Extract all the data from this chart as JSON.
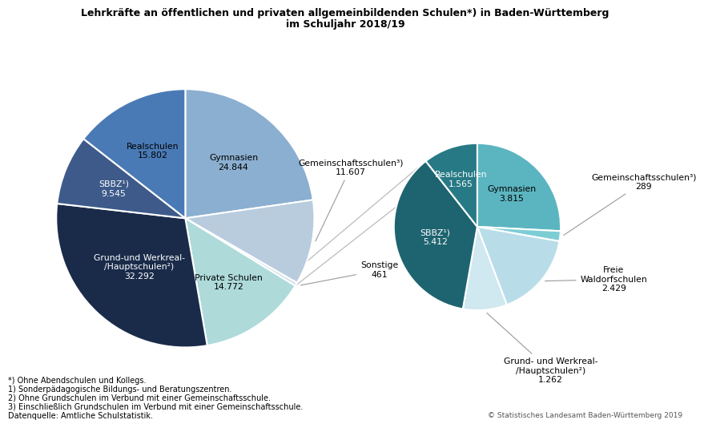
{
  "title_line1": "Lehrkräfte an öffentlichen und privaten allgemeinbildenden Schulen*) in Baden-Württemberg",
  "title_line2": "im Schuljahr 2018/19",
  "big_pie": {
    "values": [
      24844,
      11607,
      461,
      14772,
      32292,
      9545,
      15802
    ],
    "colors": [
      "#8BAFD0",
      "#B8CCDE",
      "#D2DDE8",
      "#AEDADA",
      "#1A2B4A",
      "#3D5A8A",
      "#4A7AB5"
    ],
    "label_names": [
      "Gymnasien",
      "Gemeinschaftsschulen³)",
      "Sonstige",
      "Private Schulen",
      "Grund-und Werkreal-\n/Hauptschulen²)",
      "SBBZ¹)",
      "Realschulen"
    ],
    "label_values": [
      "24.844",
      "11.607",
      "461",
      "14.772",
      "32.292",
      "9.545",
      "15.802"
    ],
    "startangle": 90,
    "text_colors": [
      "#000000",
      "#000000",
      "#000000",
      "#000000",
      "#ffffff",
      "#ffffff",
      "#000000"
    ]
  },
  "small_pie": {
    "values": [
      3815,
      289,
      2429,
      1262,
      5412,
      1565
    ],
    "colors": [
      "#5BB5C0",
      "#7DCDD5",
      "#B8DDE8",
      "#D0E8EF",
      "#1E6470",
      "#277A85"
    ],
    "label_names": [
      "Gymnasien",
      "Gemeinschaftsschulen³)",
      "Freie\nWaldorfschulen",
      "Grund- und Werkreal-\n/Hauptschulen²)",
      "SBBZ¹)",
      "Realschulen"
    ],
    "label_values": [
      "3.815",
      "289",
      "2.429",
      "1.262",
      "5.412",
      "1.565"
    ],
    "startangle": 90,
    "text_colors": [
      "#000000",
      "#000000",
      "#000000",
      "#000000",
      "#ffffff",
      "#ffffff"
    ]
  },
  "footnotes": [
    "*) Ohne Abendschulen und Kollegs.",
    "1) Sonderpädagogische Bildungs- und Beratungszentren.",
    "2) Ohne Grundschulen im Verbund mit einer Gemeinschaftsschule.",
    "3) Einschließlich Grundschulen im Verbund mit einer Gemeinschaftsschule.",
    "Datenquelle: Amtliche Schulstatistik."
  ],
  "copyright": "© Statistisches Landesamt Baden-Württemberg 2019",
  "bg_color": "#FFFFFF",
  "font_size_title": 9.0,
  "font_size_labels": 7.8,
  "font_size_footnotes": 7.0
}
